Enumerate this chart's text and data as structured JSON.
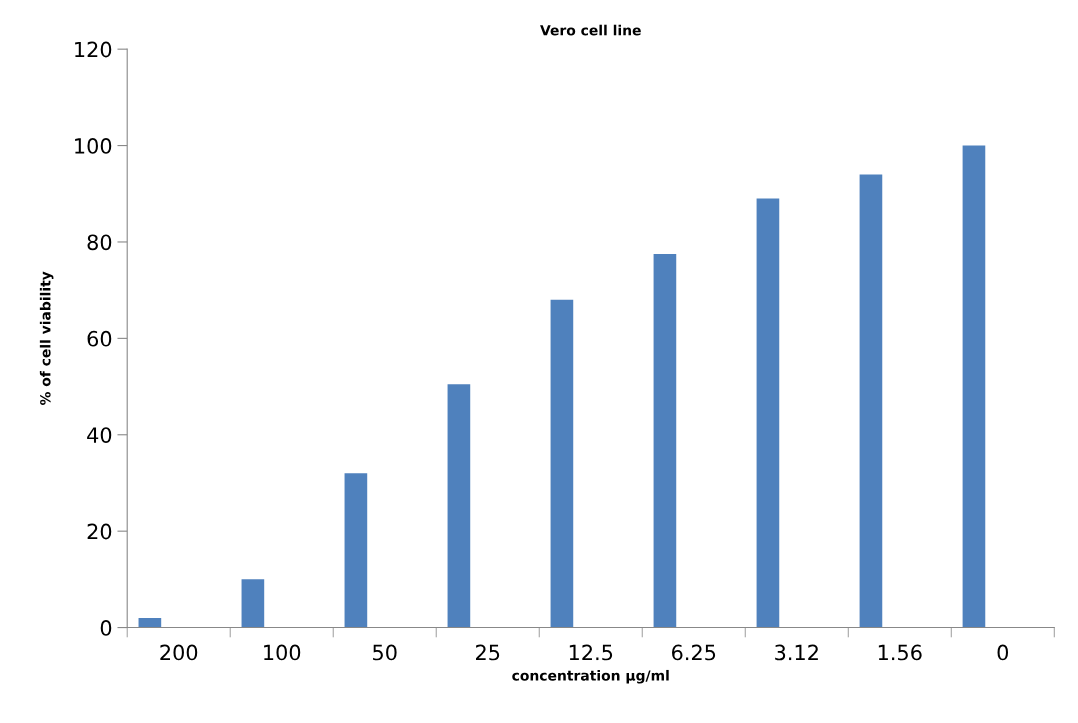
{
  "chart_data": {
    "type": "bar",
    "title": "Vero cell line",
    "xlabel": "concentration µg/ml",
    "ylabel": "% of cell viability",
    "categories": [
      "200",
      "100",
      "50",
      "25",
      "12.5",
      "6.25",
      "3.12",
      "1.56",
      "0"
    ],
    "values": [
      2,
      10,
      32,
      50.5,
      68,
      77.5,
      89,
      94,
      100
    ],
    "color": "#4f81bd",
    "ylim": [
      0,
      120
    ],
    "yticks": [
      0,
      20,
      40,
      60,
      80,
      100,
      120
    ],
    "grid": false,
    "legend": false
  }
}
